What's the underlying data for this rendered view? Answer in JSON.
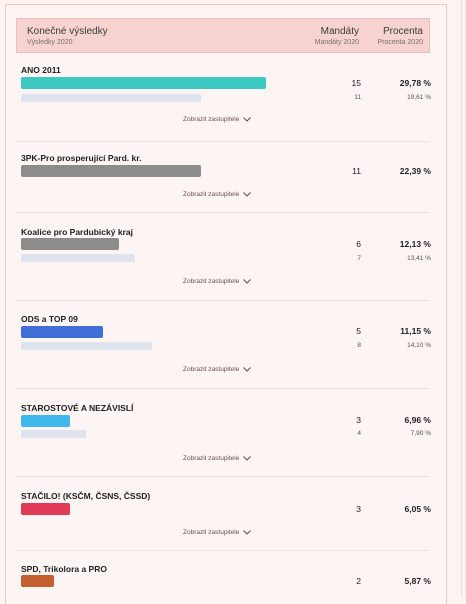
{
  "header": {
    "title": "Konečné výsledky",
    "subtitle": "Výsledky 2020",
    "mandates": "Mandáty",
    "mandates_sub": "Mandáty 2020",
    "percent": "Procenta",
    "percent_sub": "Procenta 2020"
  },
  "show_label": "Zobrazit zastupitele",
  "parties": [
    {
      "name": "ANO 2011",
      "mandates": "15",
      "percent": "29,78 %",
      "mandates_prev": "11",
      "percent_prev": "19,61 %",
      "color": "#3dc9c3"
    },
    {
      "name": "3PK-Pro prosperující Pard. kr.",
      "mandates": "11",
      "percent": "22,39 %",
      "color": "#8c8c8c"
    },
    {
      "name": "Koalice pro Pardubický kraj",
      "mandates": "6",
      "percent": "12,13 %",
      "mandates_prev": "7",
      "percent_prev": "13,41 %",
      "color": "#8c8c8c"
    },
    {
      "name": "ODS a TOP 09",
      "mandates": "5",
      "percent": "11,15 %",
      "mandates_prev": "8",
      "percent_prev": "14,10 %",
      "color": "#3f6ed6"
    },
    {
      "name": "STAROSTOVÉ A NEZÁVISLÍ",
      "mandates": "3",
      "percent": "6,96 %",
      "mandates_prev": "4",
      "percent_prev": "7,90 %",
      "color": "#3fb9ec"
    },
    {
      "name": "STAČILO! (KSČM, ČSNS, ČSSD)",
      "mandates": "3",
      "percent": "6,05 %",
      "color": "#e03a57"
    },
    {
      "name": "SPD, Trikolora a PRO",
      "mandates": "2",
      "percent": "5,87 %",
      "color": "#c4602f"
    }
  ]
}
